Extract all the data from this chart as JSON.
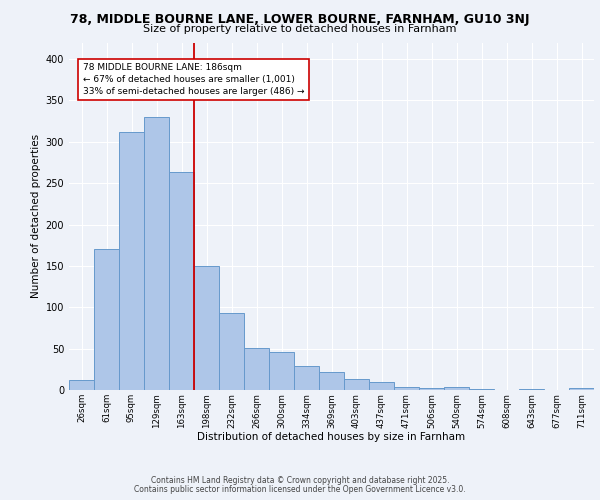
{
  "title1": "78, MIDDLE BOURNE LANE, LOWER BOURNE, FARNHAM, GU10 3NJ",
  "title2": "Size of property relative to detached houses in Farnham",
  "xlabel": "Distribution of detached houses by size in Farnham",
  "ylabel": "Number of detached properties",
  "bar_labels": [
    "26sqm",
    "61sqm",
    "95sqm",
    "129sqm",
    "163sqm",
    "198sqm",
    "232sqm",
    "266sqm",
    "300sqm",
    "334sqm",
    "369sqm",
    "403sqm",
    "437sqm",
    "471sqm",
    "506sqm",
    "540sqm",
    "574sqm",
    "608sqm",
    "643sqm",
    "677sqm",
    "711sqm"
  ],
  "bar_values": [
    12,
    170,
    312,
    330,
    263,
    150,
    93,
    51,
    46,
    29,
    22,
    13,
    10,
    4,
    2,
    4,
    1,
    0,
    1,
    0,
    3
  ],
  "bar_color": "#aec6e8",
  "bar_edge_color": "#6699cc",
  "vline_color": "#cc0000",
  "annotation_title": "78 MIDDLE BOURNE LANE: 186sqm",
  "annotation_line1": "← 67% of detached houses are smaller (1,001)",
  "annotation_line2": "33% of semi-detached houses are larger (486) →",
  "annotation_box_color": "#ffffff",
  "annotation_box_edge": "#cc0000",
  "ylim": [
    0,
    420
  ],
  "yticks": [
    0,
    50,
    100,
    150,
    200,
    250,
    300,
    350,
    400
  ],
  "bg_color": "#eef2f9",
  "grid_color": "#ffffff",
  "footer1": "Contains HM Land Registry data © Crown copyright and database right 2025.",
  "footer2": "Contains public sector information licensed under the Open Government Licence v3.0."
}
